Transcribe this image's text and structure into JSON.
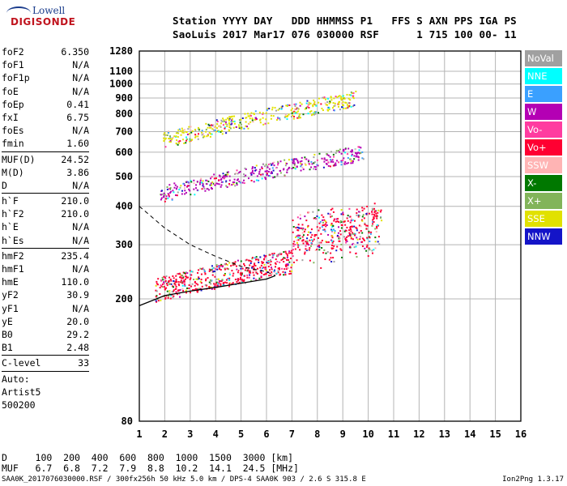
{
  "logo": {
    "line1": "Lowell",
    "line2": "DIGISONDE"
  },
  "header": {
    "labels": "Station YYYY DAY   DDD HHMMSS P1   FFS S AXN PPS IGA PS",
    "values": "SaoLuis 2017 Mar17 076 030000 RSF      1 715 100 00- 11"
  },
  "params": [
    [
      {
        "name": "foF2",
        "value": "6.350"
      },
      {
        "name": "foF1",
        "value": "N/A"
      },
      {
        "name": "foF1p",
        "value": "N/A"
      },
      {
        "name": "foE",
        "value": "N/A"
      },
      {
        "name": "foEp",
        "value": "0.41"
      },
      {
        "name": "fxI",
        "value": "6.75"
      },
      {
        "name": "foEs",
        "value": "N/A"
      },
      {
        "name": "fmin",
        "value": "1.60"
      }
    ],
    [
      {
        "name": "MUF(D)",
        "value": "24.52"
      },
      {
        "name": "M(D)",
        "value": "3.86"
      },
      {
        "name": "D",
        "value": "N/A"
      }
    ],
    [
      {
        "name": "h`F",
        "value": "210.0"
      },
      {
        "name": "h`F2",
        "value": "210.0"
      },
      {
        "name": "h`E",
        "value": "N/A"
      },
      {
        "name": "h`Es",
        "value": "N/A"
      }
    ],
    [
      {
        "name": "hmF2",
        "value": "235.4"
      },
      {
        "name": "hmF1",
        "value": "N/A"
      },
      {
        "name": "hmE",
        "value": "110.0"
      },
      {
        "name": "yF2",
        "value": "30.9"
      },
      {
        "name": "yF1",
        "value": "N/A"
      },
      {
        "name": "yE",
        "value": "20.0"
      },
      {
        "name": "B0",
        "value": "29.2"
      },
      {
        "name": "B1",
        "value": "2.48"
      }
    ],
    [
      {
        "name": "C-level",
        "value": "33"
      }
    ]
  ],
  "auto": {
    "line1": "Auto:",
    "line2": "Artist5",
    "line3": "500200"
  },
  "legend": [
    {
      "label": "NoVal",
      "color": "#a0a0a0"
    },
    {
      "label": "NNE",
      "color": "#00ffff"
    },
    {
      "label": "E",
      "color": "#3aa0ff"
    },
    {
      "label": "W",
      "color": "#b400b4"
    },
    {
      "label": "Vo-",
      "color": "#ff3ca0"
    },
    {
      "label": "Vo+",
      "color": "#ff0032"
    },
    {
      "label": "SSW",
      "color": "#ffb4b4"
    },
    {
      "label": "X-",
      "color": "#007800"
    },
    {
      "label": "X+",
      "color": "#82b45a"
    },
    {
      "label": "SSE",
      "color": "#e1e100"
    },
    {
      "label": "NNW",
      "color": "#1414c8"
    }
  ],
  "chart_data": {
    "type": "scatter",
    "x": {
      "min": 1,
      "max": 16,
      "ticks": [
        1,
        2,
        3,
        4,
        5,
        6,
        7,
        8,
        9,
        10,
        11,
        12,
        13,
        14,
        15,
        16
      ],
      "tick_labels": [
        "1",
        "2",
        "3",
        "4",
        "5",
        "6",
        "7",
        "8",
        "9",
        "10",
        "11",
        "12",
        "13",
        "14",
        "15",
        "16"
      ]
    },
    "y": {
      "scale": "log",
      "min": 80,
      "max": 1280,
      "ticks": [
        80,
        200,
        300,
        400,
        500,
        600,
        700,
        800,
        900,
        1000,
        1100,
        1280
      ],
      "tick_labels": [
        "80",
        "200",
        "300",
        "400",
        "500",
        "600",
        "700",
        "800",
        "900",
        "1000",
        "1100",
        "1280"
      ]
    },
    "grid": true,
    "traces": [
      {
        "name": "O-trace",
        "color": "#ff0032",
        "from": [
          1.6,
          215
        ],
        "to": [
          10.5,
          300
        ]
      },
      {
        "name": "second hop",
        "color": "#b400b4",
        "from": [
          1.8,
          440
        ],
        "to": [
          9.8,
          600
        ]
      },
      {
        "name": "third hop",
        "color": "#e1e100",
        "from": [
          1.9,
          660
        ],
        "to": [
          9.5,
          900
        ]
      }
    ],
    "profile": {
      "name": "profile",
      "points": [
        [
          1,
          190
        ],
        [
          2,
          205
        ],
        [
          3,
          212
        ],
        [
          4,
          218
        ],
        [
          5,
          225
        ],
        [
          6,
          232
        ],
        [
          6.35,
          238
        ]
      ]
    },
    "dashed_profile": {
      "points": [
        [
          1,
          400
        ],
        [
          2,
          340
        ],
        [
          3,
          300
        ],
        [
          4,
          275
        ],
        [
          5,
          255
        ],
        [
          6,
          245
        ],
        [
          6.35,
          238
        ]
      ]
    }
  },
  "footer": {
    "line1": "D     100  200  400  600  800  1000  1500  3000 [km]",
    "line2": "MUF   6.7  6.8  7.2  7.9  8.8  10.2  14.1  24.5 [MHz]",
    "line3": "SAA0K_2017076030000.RSF / 300fx256h 50 kHz 5.0 km / DPS-4 SAA0K 903 / 2.6 S 315.8 E",
    "version": "Ion2Png 1.3.17"
  }
}
